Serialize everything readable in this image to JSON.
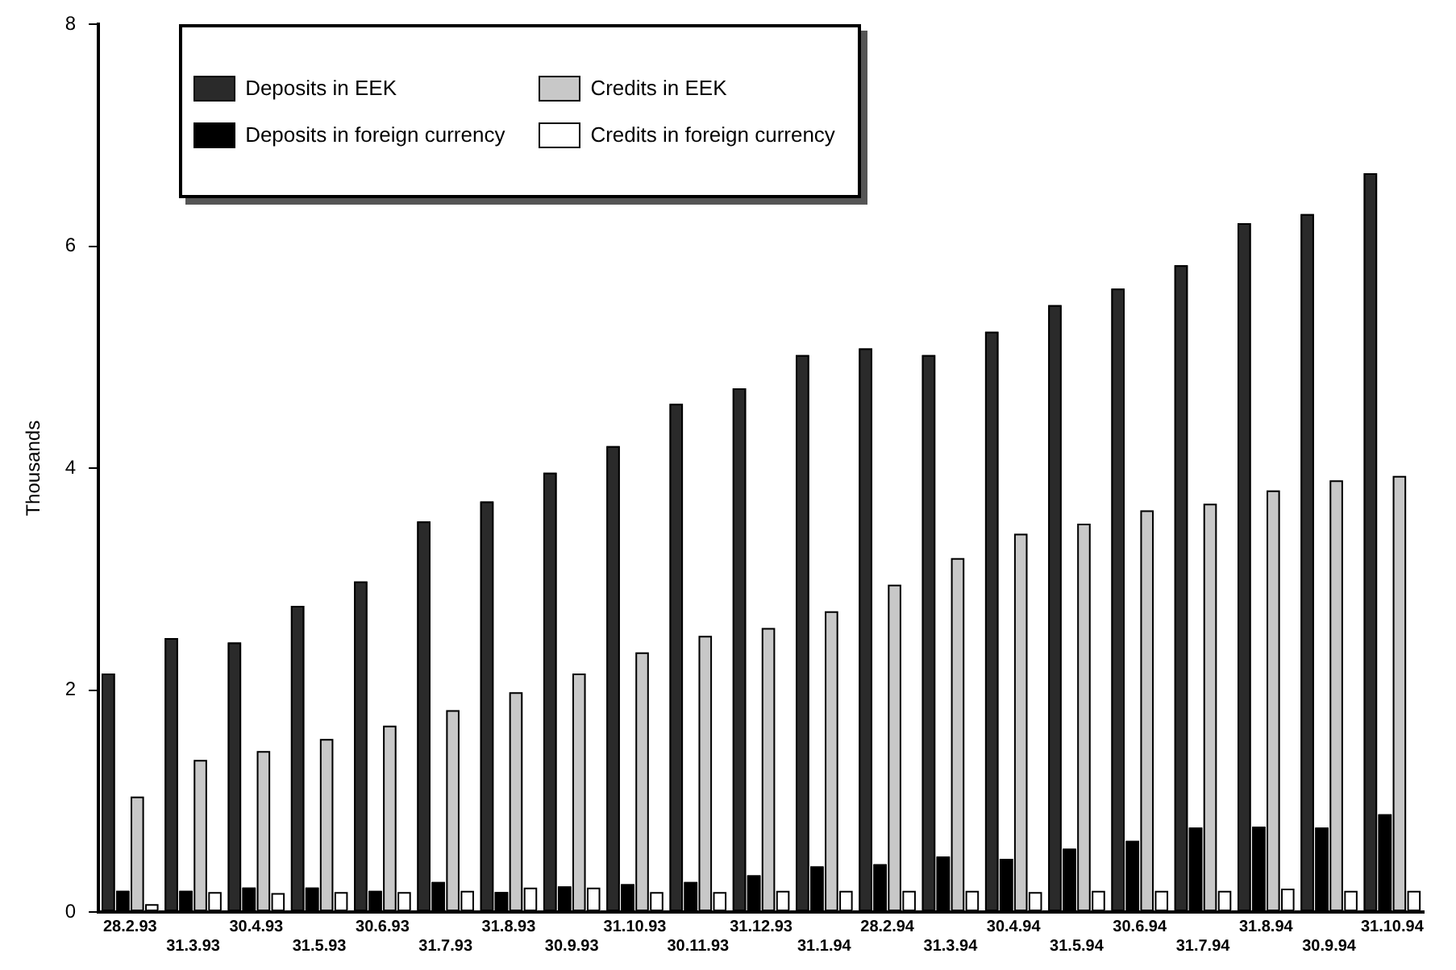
{
  "chart_data": {
    "type": "bar",
    "ylabel": "Thousands",
    "categories": [
      "28.2.93",
      "31.3.93",
      "30.4.93",
      "31.5.93",
      "30.6.93",
      "31.7.93",
      "31.8.93",
      "30.9.93",
      "31.10.93",
      "30.11.93",
      "31.12.93",
      "31.1.94",
      "28.2.94",
      "31.3.94",
      "30.4.94",
      "31.5.94",
      "30.6.94",
      "31.7.94",
      "31.8.94",
      "30.9.94",
      "31.10.94"
    ],
    "series": [
      {
        "name": "Deposits in EEK",
        "color": "#2a2a2a",
        "values": [
          2.15,
          2.47,
          2.43,
          2.76,
          2.98,
          3.52,
          3.7,
          3.96,
          4.2,
          4.58,
          4.72,
          5.02,
          5.08,
          5.02,
          5.23,
          5.47,
          5.62,
          5.83,
          6.21,
          6.29,
          6.66
        ]
      },
      {
        "name": "Deposits in foreign currency",
        "color": "#000000",
        "values": [
          0.19,
          0.19,
          0.22,
          0.22,
          0.19,
          0.27,
          0.18,
          0.23,
          0.25,
          0.27,
          0.33,
          0.41,
          0.43,
          0.5,
          0.48,
          0.57,
          0.64,
          0.76,
          0.77,
          0.76,
          0.88
        ]
      },
      {
        "name": "Credits in EEK",
        "color": "#c8c8c8",
        "values": [
          1.04,
          1.37,
          1.45,
          1.56,
          1.68,
          1.82,
          1.98,
          2.15,
          2.34,
          2.49,
          2.56,
          2.71,
          2.95,
          3.19,
          3.41,
          3.5,
          3.62,
          3.68,
          3.8,
          3.89,
          3.93
        ]
      },
      {
        "name": "Credits in foreign currency",
        "color": "#ffffff",
        "values": [
          0.07,
          0.18,
          0.17,
          0.18,
          0.18,
          0.19,
          0.22,
          0.22,
          0.18,
          0.18,
          0.19,
          0.19,
          0.19,
          0.19,
          0.18,
          0.19,
          0.19,
          0.19,
          0.21,
          0.19,
          0.19
        ]
      }
    ],
    "ylim": [
      0,
      8
    ],
    "yticks": [
      0,
      2,
      4,
      6,
      8
    ],
    "legend": "top left"
  }
}
